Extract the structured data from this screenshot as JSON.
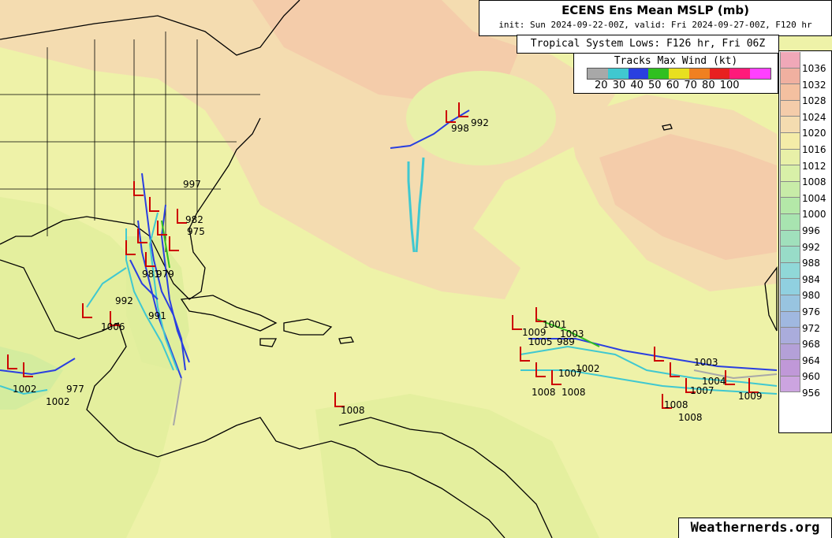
{
  "header": {
    "title": "ECENS Ens Mean MSLP (mb)",
    "subtitle": "init: Sun 2024-09-22-00Z, valid: Fri 2024-09-27-00Z, F120 hr",
    "lows_label": "Tropical System Lows: F126 hr, Fri 06Z"
  },
  "wind_legend": {
    "title": "Tracks Max Wind (kt)",
    "labels": "20 30 40 50 60 70 80 100",
    "colors": [
      "#a8a8a8",
      "#40c8d0",
      "#2a3fe0",
      "#30c020",
      "#e8e020",
      "#f08020",
      "#e82020",
      "#ff1a7a",
      "#ff40ff"
    ]
  },
  "colorbar": {
    "levels": [
      "1036",
      "1032",
      "1028",
      "1024",
      "1020",
      "1016",
      "1012",
      "1008",
      "1004",
      "1000",
      "996",
      "992",
      "988",
      "984",
      "980",
      "976",
      "972",
      "968",
      "964",
      "960",
      "956"
    ],
    "colors": [
      "#f0a8b8",
      "#f0b0a0",
      "#f4c0a0",
      "#f4ccaa",
      "#f4dcb0",
      "#f4eca8",
      "#e8f0a8",
      "#d8f0a8",
      "#c8eca8",
      "#b4e8a8",
      "#a8e4b0",
      "#a0e0bc",
      "#98dcc8",
      "#90d8d8",
      "#90d0e0",
      "#98c4e0",
      "#a0b8e0",
      "#aaacdc",
      "#b4a0d8",
      "#c098d8",
      "#cca4e0"
    ]
  },
  "pressure_labels": [
    {
      "id": "p998",
      "text": "998"
    },
    {
      "id": "p992a",
      "text": "992"
    },
    {
      "id": "p997",
      "text": "997"
    },
    {
      "id": "p975",
      "text": "975"
    },
    {
      "id": "p982",
      "text": "982"
    },
    {
      "id": "p981",
      "text": "981"
    },
    {
      "id": "p979",
      "text": "979"
    },
    {
      "id": "p992b",
      "text": "992"
    },
    {
      "id": "p991",
      "text": "991"
    },
    {
      "id": "p1006",
      "text": "1006"
    },
    {
      "id": "p1002a",
      "text": "1002"
    },
    {
      "id": "p977",
      "text": "977"
    },
    {
      "id": "p1002b",
      "text": "1002"
    },
    {
      "id": "p1008a",
      "text": "1008"
    },
    {
      "id": "p1001",
      "text": "1001"
    },
    {
      "id": "p1003a",
      "text": "1003"
    },
    {
      "id": "p1009a",
      "text": "1009"
    },
    {
      "id": "p1005",
      "text": "1005"
    },
    {
      "id": "p989",
      "text": "989"
    },
    {
      "id": "p1007",
      "text": "1007"
    },
    {
      "id": "p1002c",
      "text": "1002"
    },
    {
      "id": "p1008b",
      "text": "1008"
    },
    {
      "id": "p1008c",
      "text": "1008"
    },
    {
      "id": "p1003b",
      "text": "1003"
    },
    {
      "id": "p1004",
      "text": "1004"
    },
    {
      "id": "p1007b",
      "text": "1007"
    },
    {
      "id": "p1009b",
      "text": "1009"
    },
    {
      "id": "p1008d",
      "text": "1008"
    },
    {
      "id": "p1008e",
      "text": "1008"
    }
  ],
  "credit": "Weathernerds.org"
}
